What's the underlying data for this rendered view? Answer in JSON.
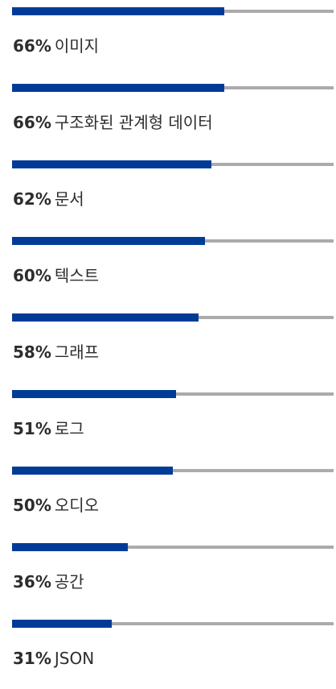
{
  "chart_data": {
    "type": "bar",
    "orientation": "horizontal",
    "value_suffix": "%",
    "ylim": [
      0,
      100
    ],
    "colors": {
      "bar": "#003c97",
      "track": "#ababab",
      "text": "#2d2d2d"
    },
    "categories": [
      "이미지",
      "구조화된 관계형 데이터",
      "문서",
      "텍스트",
      "그래프",
      "로그",
      "오디오",
      "공간",
      "JSON"
    ],
    "values": [
      66,
      66,
      62,
      60,
      58,
      51,
      50,
      36,
      31
    ],
    "items": [
      {
        "value": 66,
        "label": "66%",
        "name": "이미지"
      },
      {
        "value": 66,
        "label": "66%",
        "name": "구조화된 관계형 데이터"
      },
      {
        "value": 62,
        "label": "62%",
        "name": "문서"
      },
      {
        "value": 60,
        "label": "60%",
        "name": "텍스트"
      },
      {
        "value": 58,
        "label": "58%",
        "name": "그래프"
      },
      {
        "value": 51,
        "label": "51%",
        "name": "로그"
      },
      {
        "value": 50,
        "label": "50%",
        "name": "오디오"
      },
      {
        "value": 36,
        "label": "36%",
        "name": "공간"
      },
      {
        "value": 31,
        "label": "31%",
        "name": "JSON"
      }
    ]
  }
}
